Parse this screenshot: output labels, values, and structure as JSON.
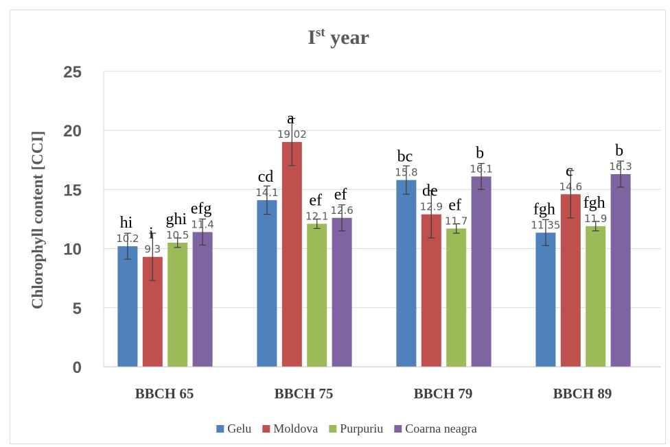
{
  "chart_data": {
    "type": "bar",
    "title": "Ist year",
    "title_main": "I",
    "title_sup": "st",
    "title_rest": " year",
    "ylabel": "Chlorophyll content [CCI]",
    "xlabel": "",
    "ylim": [
      0,
      25
    ],
    "yticks": [
      "0",
      "5",
      "10",
      "15",
      "20",
      "25"
    ],
    "grid": true,
    "legend_position": "bottom",
    "categories": [
      "BBCH 65",
      "BBCH 75",
      "BBCH 79",
      "BBCH 89"
    ],
    "series": [
      {
        "name": "Gelu",
        "color": "#4f81bd",
        "values": [
          10.2,
          14.1,
          15.8,
          11.35
        ],
        "labels": [
          "10.2",
          "14.1",
          "15.8",
          "11.35"
        ],
        "errors": [
          1.1,
          1.2,
          1.2,
          1.1
        ],
        "letters": [
          "hi",
          "cd",
          "bc",
          "fgh"
        ]
      },
      {
        "name": "Moldova",
        "color": "#c0504d",
        "values": [
          9.3,
          19.02,
          12.9,
          14.6
        ],
        "labels": [
          "9.3",
          "19.02",
          "12.9",
          "14.6"
        ],
        "errors": [
          2.0,
          2.0,
          2.0,
          2.0
        ],
        "letters": [
          "i",
          "a",
          "de",
          "c"
        ]
      },
      {
        "name": "Purpuriu",
        "color": "#9bbb59",
        "values": [
          10.5,
          12.1,
          11.7,
          11.9
        ],
        "labels": [
          "10.5",
          "12.1",
          "11.7",
          "11.9"
        ],
        "errors": [
          0.4,
          0.4,
          0.4,
          0.4
        ],
        "letters": [
          "ghi",
          "ef",
          "ef",
          "fgh"
        ]
      },
      {
        "name": "Coarna neagra",
        "color": "#8064a2",
        "values": [
          11.4,
          12.6,
          16.1,
          16.3
        ],
        "labels": [
          "11.4",
          "12.6",
          "16.1",
          "16.3"
        ],
        "errors": [
          1.1,
          1.1,
          1.1,
          1.1
        ],
        "letters": [
          "efg",
          "ef",
          "b",
          "b"
        ]
      }
    ]
  }
}
